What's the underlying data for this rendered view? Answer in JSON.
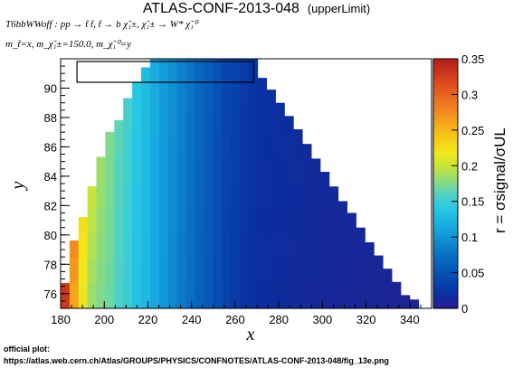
{
  "header": {
    "title": "ATLAS-CONF-2013-048",
    "title_suffix": "(upperLimit)",
    "process": "T6bbWWoff : pp → t̃ t̃, t̃ → b χ̃₁±, χ̃₁± → W* χ̃₁⁰",
    "params": "m_t̃=x, m_χ̃₁±=150.0, m_χ̃₁⁰=y"
  },
  "footer": {
    "label": "official plot:",
    "url": "https://atlas.web.cern.ch/Atlas/GROUPS/PHYSICS/CONFNOTES/ATLAS-CONF-2013-048/fig_13e.png"
  },
  "chart_data": {
    "type": "heatmap",
    "xlabel": "x",
    "ylabel": "y",
    "zlabel": "r = σsignal/σUL",
    "xlim": [
      180,
      350
    ],
    "ylim": [
      75,
      92
    ],
    "zlim": [
      0,
      0.35
    ],
    "x_ticks": [
      180,
      200,
      220,
      240,
      260,
      280,
      300,
      320,
      340
    ],
    "y_ticks": [
      76,
      78,
      80,
      82,
      84,
      86,
      88,
      90
    ],
    "z_ticks": [
      "0",
      "0.05",
      "0.1",
      "0.15",
      "0.2",
      "0.25",
      "0.3",
      "0.35"
    ],
    "bin_width_x": 4.1,
    "bin_height_y": 1.72,
    "columns": [
      {
        "x": 180.0,
        "y_max": 76.72,
        "r": [
          0.33
        ]
      },
      {
        "x": 184.1,
        "y_max": 79.62,
        "r": [
          0.26,
          0.275
        ]
      },
      {
        "x": 188.2,
        "y_max": 81.22,
        "r": [
          0.215,
          0.225
        ]
      },
      {
        "x": 192.3,
        "y_max": 83.32,
        "r": [
          0.185,
          0.2
        ]
      },
      {
        "x": 196.4,
        "y_max": 85.32,
        "r": [
          0.175,
          0.185
        ]
      },
      {
        "x": 200.5,
        "y_max": 87.02,
        "r": [
          0.17,
          0.175
        ]
      },
      {
        "x": 204.6,
        "y_max": 87.82,
        "r": [
          0.158,
          0.164
        ]
      },
      {
        "x": 208.7,
        "y_max": 89.32,
        "r": [
          0.15,
          0.155
        ]
      },
      {
        "x": 212.8,
        "y_max": 90.42,
        "r": [
          0.135,
          0.14
        ]
      },
      {
        "x": 216.9,
        "y_max": 91.42,
        "r": [
          0.127,
          0.13
        ]
      },
      {
        "x": 221.0,
        "y_max": 92.0,
        "r": [
          0.114,
          0.118
        ]
      },
      {
        "x": 225.1,
        "y_max": 92.0,
        "r": [
          0.102,
          0.106
        ]
      },
      {
        "x": 229.2,
        "y_max": 92.0,
        "r": [
          0.092,
          0.098
        ]
      },
      {
        "x": 233.3,
        "y_max": 92.0,
        "r": [
          0.082,
          0.088
        ]
      },
      {
        "x": 237.4,
        "y_max": 92.0,
        "r": [
          0.073,
          0.079
        ]
      },
      {
        "x": 241.5,
        "y_max": 92.0,
        "r": [
          0.062,
          0.068
        ]
      },
      {
        "x": 245.6,
        "y_max": 92.0,
        "r": [
          0.055,
          0.06
        ]
      },
      {
        "x": 249.7,
        "y_max": 92.0,
        "r": [
          0.045,
          0.05
        ]
      },
      {
        "x": 253.8,
        "y_max": 92.0,
        "r": [
          0.036,
          0.04
        ]
      },
      {
        "x": 257.9,
        "y_max": 92.0,
        "r": [
          0.03,
          0.036
        ]
      },
      {
        "x": 262.0,
        "y_max": 92.0,
        "r": [
          0.025,
          0.03
        ]
      },
      {
        "x": 266.1,
        "y_max": 92.0,
        "r": [
          0.02,
          0.025
        ]
      },
      {
        "x": 270.2,
        "y_max": 90.7,
        "r": [
          0.018,
          0.022
        ]
      },
      {
        "x": 274.3,
        "y_max": 89.9,
        "r": [
          0.017,
          0.02
        ]
      },
      {
        "x": 278.4,
        "y_max": 89.0,
        "r": [
          0.017,
          0.019
        ]
      },
      {
        "x": 282.5,
        "y_max": 88.1,
        "r": [
          0.016,
          0.018
        ]
      },
      {
        "x": 286.6,
        "y_max": 87.2,
        "r": [
          0.015,
          0.017
        ]
      },
      {
        "x": 290.7,
        "y_max": 86.2,
        "r": [
          0.014,
          0.016
        ]
      },
      {
        "x": 294.8,
        "y_max": 85.2,
        "r": [
          0.013,
          0.015
        ]
      },
      {
        "x": 298.9,
        "y_max": 84.3,
        "r": [
          0.013,
          0.014
        ]
      },
      {
        "x": 303.0,
        "y_max": 83.3,
        "r": [
          0.012,
          0.014
        ]
      },
      {
        "x": 307.1,
        "y_max": 82.3,
        "r": [
          0.012,
          0.013
        ]
      },
      {
        "x": 311.2,
        "y_max": 81.5,
        "r": [
          0.011,
          0.013
        ]
      },
      {
        "x": 315.3,
        "y_max": 80.5,
        "r": [
          0.011,
          0.012
        ]
      },
      {
        "x": 319.4,
        "y_max": 79.5,
        "r": [
          0.01,
          0.012
        ]
      },
      {
        "x": 323.5,
        "y_max": 78.6,
        "r": [
          0.01,
          0.011
        ]
      },
      {
        "x": 327.6,
        "y_max": 77.7,
        "r": [
          0.009,
          0.011
        ]
      },
      {
        "x": 331.7,
        "y_max": 76.8,
        "r": [
          0.009,
          0.01
        ]
      },
      {
        "x": 335.8,
        "y_max": 75.9,
        "r": [
          0.008,
          0.01
        ]
      },
      {
        "x": 339.9,
        "y_max": 75.6,
        "r": [
          0.008
        ]
      }
    ],
    "annotation_box": {
      "x0": 187.5,
      "x1": 268.5,
      "y0": 90.4,
      "y1": 92.0
    },
    "colorbar_stops": [
      {
        "v": 0.0,
        "color": "#2b1c8f"
      },
      {
        "v": 0.02,
        "color": "#0a2fa0"
      },
      {
        "v": 0.05,
        "color": "#0652b5"
      },
      {
        "v": 0.08,
        "color": "#0a77c8"
      },
      {
        "v": 0.11,
        "color": "#15a3dc"
      },
      {
        "v": 0.14,
        "color": "#27c8e6"
      },
      {
        "v": 0.16,
        "color": "#4fd2c4"
      },
      {
        "v": 0.18,
        "color": "#8fdc7a"
      },
      {
        "v": 0.2,
        "color": "#c8e43a"
      },
      {
        "v": 0.22,
        "color": "#f3e619"
      },
      {
        "v": 0.25,
        "color": "#f7b818"
      },
      {
        "v": 0.28,
        "color": "#f08422"
      },
      {
        "v": 0.31,
        "color": "#e2541e"
      },
      {
        "v": 0.35,
        "color": "#b91c1c"
      }
    ]
  }
}
